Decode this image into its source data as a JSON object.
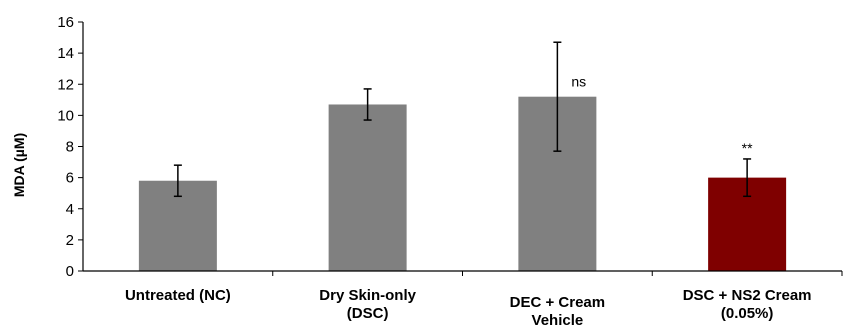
{
  "chart_data": {
    "type": "bar",
    "title": "",
    "xlabel": "",
    "ylabel": "MDA (µM)",
    "ylim": [
      0,
      16
    ],
    "yticks": [
      0,
      2,
      4,
      6,
      8,
      10,
      12,
      14,
      16
    ],
    "grid": false,
    "legend": "none",
    "categories": [
      [
        "Untreated (NC)"
      ],
      [
        "Dry Skin-only",
        "(DSC)"
      ],
      [
        "DEC + Cream",
        "Vehicle"
      ],
      [
        "DSC +  NS2 Cream",
        "(0.05%)"
      ]
    ],
    "values": [
      5.8,
      10.7,
      11.2,
      6.0
    ],
    "errors": [
      1.0,
      1.0,
      3.5,
      1.2
    ],
    "annotations": [
      "",
      "",
      "ns",
      "**"
    ],
    "colors": [
      "#808080",
      "#808080",
      "#808080",
      "#7f0000"
    ]
  }
}
